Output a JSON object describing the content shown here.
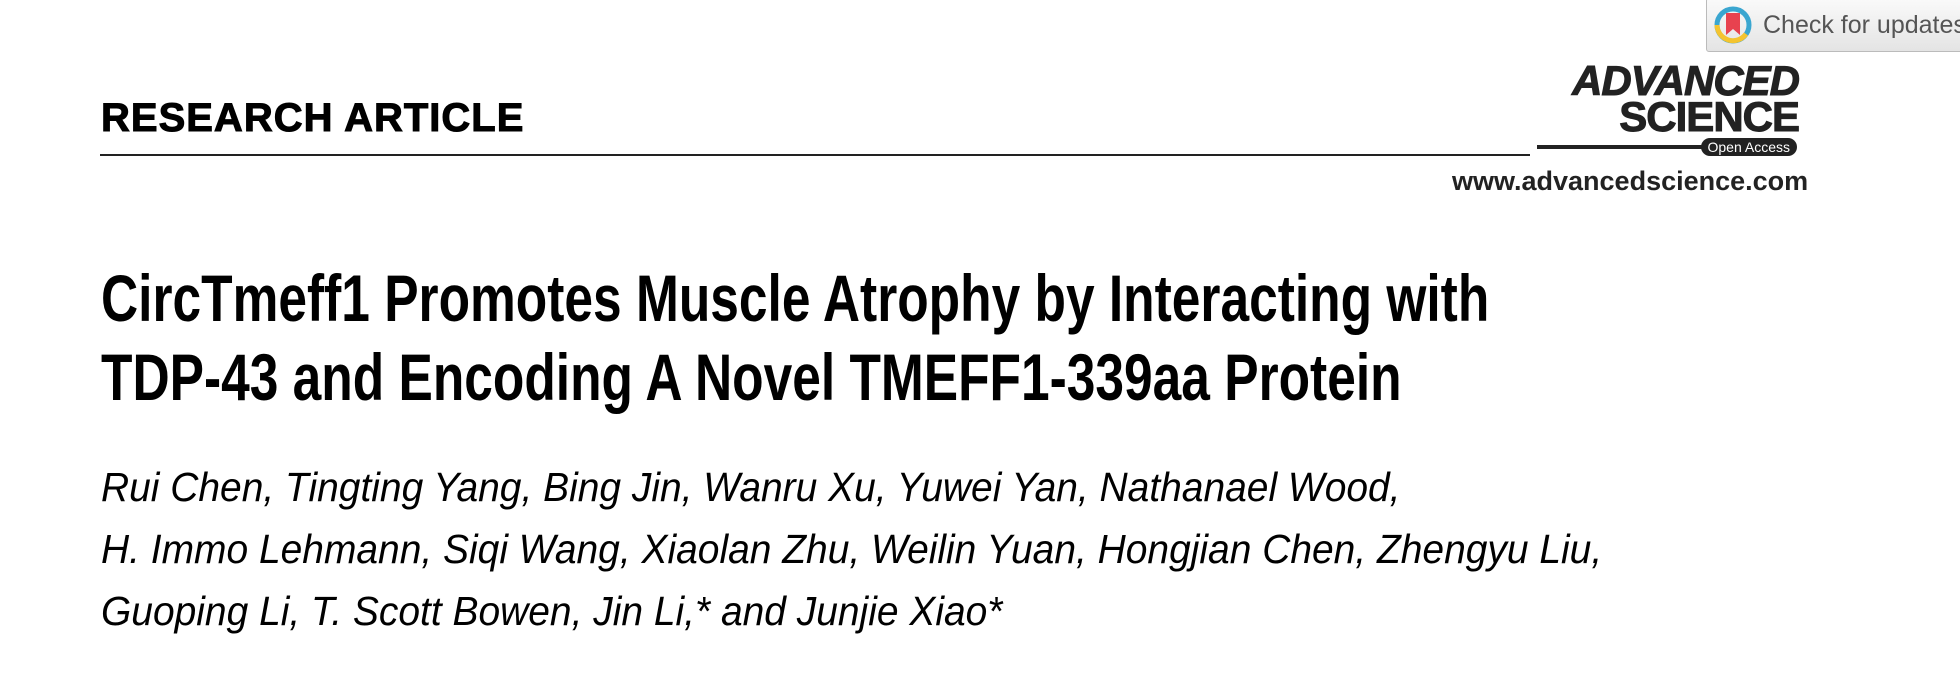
{
  "header": {
    "section_label": "RESEARCH ARTICLE",
    "journal_logo": {
      "line1": "ADVANCED",
      "line2": "SCIENCE",
      "badge": "Open Access"
    },
    "website": "www.advancedscience.com",
    "check_for_updates": "Check for updates"
  },
  "article": {
    "title_lines": [
      "CircTmeff1 Promotes Muscle Atrophy by Interacting with",
      "TDP-43 and Encoding A Novel TMEFF1-339aa Protein"
    ],
    "author_lines": [
      "Rui Chen, Tingting Yang, Bing Jin, Wanru Xu, Yuwei Yan, Nathanael Wood,",
      "H. Immo Lehmann, Siqi Wang, Xiaolan Zhu, Weilin Yuan, Hongjian Chen, Zhengyu Liu,",
      "Guoping Li, T. Scott Bowen, Jin Li,* and Junjie Xiao*"
    ]
  },
  "colors": {
    "text": "#000000",
    "logo": "#222222",
    "update_red": "#e8424f",
    "update_yellow": "#f4c430",
    "update_blue": "#3aa6d0"
  }
}
